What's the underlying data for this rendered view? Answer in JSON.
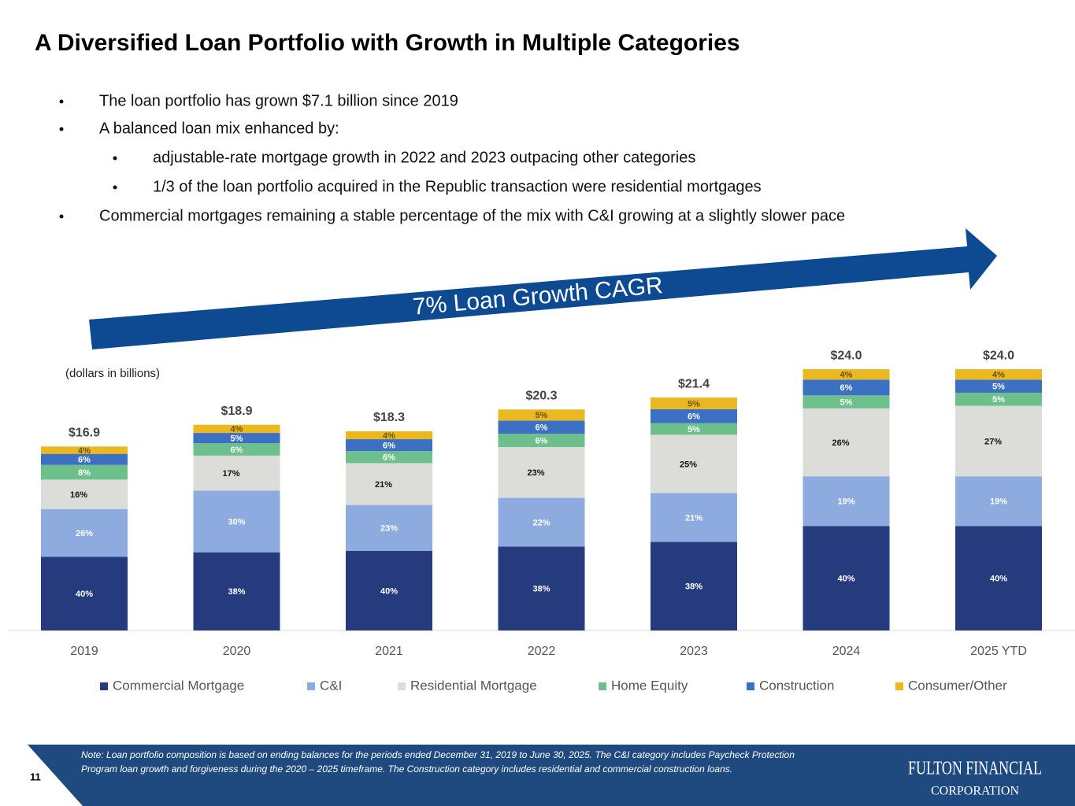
{
  "header": {
    "title": "A Diversified Loan Portfolio with Growth in Multiple Categories"
  },
  "bullets": [
    {
      "text": "The loan portfolio has grown $7.1 billion since 2019",
      "level": 1
    },
    {
      "text": "A balanced loan mix enhanced by:",
      "level": 1
    },
    {
      "text": "adjustable-rate mortgage growth in 2022 and 2023 outpacing other categories",
      "level": 2
    },
    {
      "text": "1/3 of the loan portfolio acquired in the Republic transaction were residential mortgages",
      "level": 2
    },
    {
      "text": "Commercial mortgages remaining a stable percentage of the mix with C&I growing at a slightly slower pace",
      "level": 1
    }
  ],
  "arrow_label": "7% Loan Growth CAGR",
  "chart_data": {
    "type": "stacked-bar",
    "subtitle": "(dollars in billions)",
    "categories": [
      "2019",
      "2020",
      "2021",
      "2022",
      "2023",
      "2024",
      "2025 YTD"
    ],
    "totals": {
      "values": [
        16.9,
        18.9,
        18.3,
        20.3,
        21.4,
        24.0,
        24.0
      ],
      "value_labels": [
        "$16.9",
        "$18.9",
        "$18.3",
        "$20.3",
        "$21.4",
        "$24.0",
        "$24.0"
      ]
    },
    "series": [
      {
        "name": "Commercial Mortgage",
        "color": "#263a7e",
        "values": [
          40,
          38,
          40,
          38,
          38,
          40,
          40
        ],
        "value_labels": [
          "40%",
          "38%",
          "40%",
          "38%",
          "38%",
          "40%",
          "40%"
        ]
      },
      {
        "name": "C&I",
        "color": "#8eabe0",
        "values": [
          26,
          30,
          23,
          22,
          21,
          19,
          19
        ],
        "value_labels": [
          "26%",
          "30%",
          "23%",
          "22%",
          "21%",
          "19%",
          "19%"
        ]
      },
      {
        "name": "Residential Mortgage",
        "color": "#dcdcd8",
        "values": [
          16,
          17,
          21,
          23,
          25,
          26,
          27
        ],
        "value_labels": [
          "16%",
          "17%",
          "21%",
          "23%",
          "25%",
          "26%",
          "27%"
        ]
      },
      {
        "name": "Home Equity",
        "color": "#6dbf8b",
        "values": [
          8,
          6,
          6,
          6,
          5,
          5,
          5
        ],
        "value_labels": [
          "8%",
          "6%",
          "6%",
          "6%",
          "5%",
          "5%",
          "5%"
        ]
      },
      {
        "name": "Construction",
        "color": "#3b70c2",
        "values": [
          6,
          5,
          6,
          6,
          6,
          6,
          5
        ],
        "value_labels": [
          "6%",
          "5%",
          "6%",
          "6%",
          "6%",
          "6%",
          "5%"
        ]
      },
      {
        "name": "Consumer/Other",
        "color": "#eab820",
        "values": [
          4,
          4,
          4,
          5,
          5,
          4,
          4
        ],
        "value_labels": [
          "4%",
          "4%",
          "4%",
          "5%",
          "5%",
          "4%",
          "4%"
        ]
      }
    ]
  },
  "footer": {
    "note_lines": [
      "Note: Loan portfolio composition is based on ending balances for the periods ended December 31, 2019 to June 30, 2025. The C&I category includes Paycheck Protection",
      "Program loan growth and forgiveness during the 2020 – 2025 timeframe. The Construction category includes residential and commercial construction loans."
    ],
    "page_number": "11",
    "logo_line1": "FULTON FINANCIAL",
    "logo_line2": "CORPORATION"
  }
}
